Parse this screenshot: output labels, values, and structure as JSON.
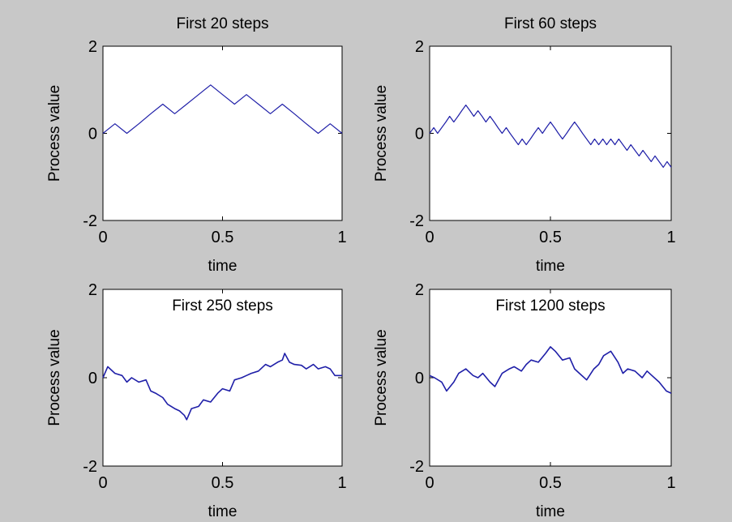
{
  "figure": {
    "background": "#c8c8c8",
    "axes_background": "#ffffff",
    "line_color": "#1f1fa8"
  },
  "chart_data": [
    {
      "type": "line",
      "title": "First 20 steps",
      "title_placement": "above",
      "xlabel": "time",
      "ylabel": "Process value",
      "xlim": [
        0,
        1
      ],
      "ylim": [
        -2,
        2
      ],
      "xticks": [
        "0",
        "0.5",
        "1"
      ],
      "yticks": [
        "-2",
        "0",
        "2"
      ],
      "grid": false,
      "series": [
        {
          "x": [
            0,
            0.05,
            0.1,
            0.15,
            0.2,
            0.25,
            0.3,
            0.35,
            0.4,
            0.45,
            0.5,
            0.55,
            0.6,
            0.65,
            0.7,
            0.75,
            0.8,
            0.85,
            0.9,
            0.95,
            1.0
          ],
          "y": [
            0,
            0.22,
            0,
            0.22,
            0.45,
            0.67,
            0.45,
            0.67,
            0.89,
            1.11,
            0.89,
            0.67,
            0.89,
            0.67,
            0.45,
            0.67,
            0.45,
            0.22,
            0,
            0.22,
            0
          ]
        }
      ]
    },
    {
      "type": "line",
      "title": "First 60 steps",
      "title_placement": "above",
      "xlabel": "time",
      "ylabel": "Process value",
      "xlim": [
        0,
        1
      ],
      "ylim": [
        -2,
        2
      ],
      "xticks": [
        "0",
        "0.5",
        "1"
      ],
      "yticks": [
        "-2",
        "0",
        "2"
      ],
      "grid": false,
      "series": [
        {
          "x": [
            0,
            0.017,
            0.033,
            0.05,
            0.067,
            0.083,
            0.1,
            0.117,
            0.133,
            0.15,
            0.167,
            0.183,
            0.2,
            0.217,
            0.233,
            0.25,
            0.267,
            0.283,
            0.3,
            0.317,
            0.333,
            0.35,
            0.367,
            0.383,
            0.4,
            0.417,
            0.433,
            0.45,
            0.467,
            0.483,
            0.5,
            0.517,
            0.533,
            0.55,
            0.567,
            0.583,
            0.6,
            0.617,
            0.633,
            0.65,
            0.667,
            0.683,
            0.7,
            0.717,
            0.733,
            0.75,
            0.767,
            0.783,
            0.8,
            0.817,
            0.833,
            0.85,
            0.867,
            0.883,
            0.9,
            0.917,
            0.933,
            0.95,
            0.967,
            0.983,
            1.0
          ],
          "y": [
            0,
            0.13,
            0,
            0.13,
            0.26,
            0.39,
            0.26,
            0.39,
            0.52,
            0.65,
            0.52,
            0.39,
            0.52,
            0.39,
            0.26,
            0.39,
            0.26,
            0.13,
            0,
            0.13,
            0,
            -0.13,
            -0.26,
            -0.13,
            -0.26,
            -0.13,
            0,
            0.13,
            0,
            0.13,
            0.26,
            0.13,
            0,
            -0.13,
            0,
            0.13,
            0.26,
            0.13,
            0,
            -0.13,
            -0.26,
            -0.13,
            -0.26,
            -0.13,
            -0.26,
            -0.13,
            -0.26,
            -0.13,
            -0.26,
            -0.39,
            -0.26,
            -0.39,
            -0.52,
            -0.39,
            -0.52,
            -0.65,
            -0.52,
            -0.65,
            -0.78,
            -0.65,
            -0.78
          ]
        }
      ]
    },
    {
      "type": "line",
      "title": "First 250 steps",
      "title_placement": "inside",
      "xlabel": "time",
      "ylabel": "Process value",
      "xlim": [
        0,
        1
      ],
      "ylim": [
        -2,
        2
      ],
      "xticks": [
        "0",
        "0.5",
        "1"
      ],
      "yticks": [
        "-2",
        "0",
        "2"
      ],
      "grid": false,
      "series": [
        {
          "x": [
            0,
            0.02,
            0.05,
            0.08,
            0.1,
            0.12,
            0.15,
            0.18,
            0.2,
            0.22,
            0.25,
            0.27,
            0.3,
            0.32,
            0.34,
            0.35,
            0.37,
            0.4,
            0.42,
            0.45,
            0.48,
            0.5,
            0.53,
            0.55,
            0.58,
            0.6,
            0.62,
            0.65,
            0.68,
            0.7,
            0.73,
            0.75,
            0.76,
            0.78,
            0.8,
            0.83,
            0.85,
            0.88,
            0.9,
            0.93,
            0.95,
            0.97,
            1.0
          ],
          "y": [
            0,
            0.25,
            0.1,
            0.05,
            -0.1,
            0.0,
            -0.1,
            -0.05,
            -0.3,
            -0.35,
            -0.45,
            -0.6,
            -0.7,
            -0.75,
            -0.85,
            -0.95,
            -0.7,
            -0.65,
            -0.5,
            -0.55,
            -0.35,
            -0.25,
            -0.3,
            -0.05,
            0,
            0.05,
            0.1,
            0.15,
            0.3,
            0.25,
            0.35,
            0.4,
            0.55,
            0.35,
            0.3,
            0.28,
            0.2,
            0.3,
            0.2,
            0.25,
            0.2,
            0.05,
            0.05
          ]
        }
      ]
    },
    {
      "type": "line",
      "title": "First 1200 steps",
      "title_placement": "inside",
      "xlabel": "time",
      "ylabel": "Process value",
      "xlim": [
        0,
        1
      ],
      "ylim": [
        -2,
        2
      ],
      "xticks": [
        "0",
        "0.5",
        "1"
      ],
      "yticks": [
        "-2",
        "0",
        "2"
      ],
      "grid": false,
      "series": [
        {
          "x": [
            0,
            0.02,
            0.05,
            0.07,
            0.1,
            0.12,
            0.15,
            0.18,
            0.2,
            0.22,
            0.25,
            0.27,
            0.3,
            0.33,
            0.35,
            0.38,
            0.4,
            0.42,
            0.45,
            0.48,
            0.5,
            0.52,
            0.55,
            0.58,
            0.6,
            0.62,
            0.65,
            0.68,
            0.7,
            0.72,
            0.75,
            0.78,
            0.8,
            0.82,
            0.85,
            0.88,
            0.9,
            0.92,
            0.95,
            0.98,
            1.0
          ],
          "y": [
            0.05,
            0.0,
            -0.1,
            -0.3,
            -0.1,
            0.1,
            0.2,
            0.05,
            0.0,
            0.1,
            -0.1,
            -0.2,
            0.1,
            0.2,
            0.25,
            0.15,
            0.3,
            0.4,
            0.35,
            0.55,
            0.7,
            0.6,
            0.4,
            0.45,
            0.2,
            0.1,
            -0.05,
            0.2,
            0.3,
            0.5,
            0.6,
            0.35,
            0.1,
            0.2,
            0.15,
            0.0,
            0.15,
            0.05,
            -0.1,
            -0.3,
            -0.35
          ]
        }
      ]
    }
  ]
}
